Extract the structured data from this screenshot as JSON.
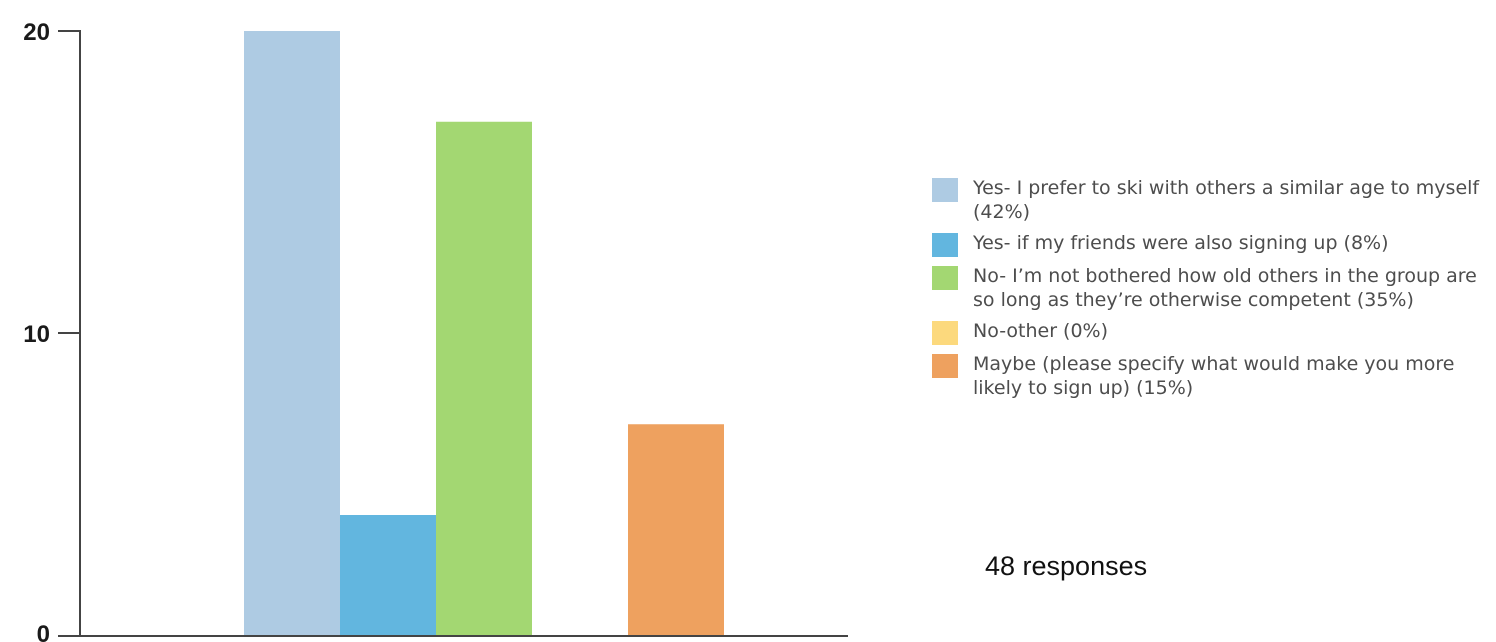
{
  "chart_data": {
    "type": "bar",
    "categories": [
      "Yes- I prefer to ski with others a similar age to myself",
      "Yes- if my friends were also signing up",
      "No- I’m not bothered how old others in the group are so long as they’re otherwise competent",
      "No-other",
      "Maybe (please specify what would make you more likely to sign up)"
    ],
    "values": [
      20,
      4,
      17,
      0,
      7
    ],
    "colors": [
      "#aecbe3",
      "#62b6df",
      "#a3d772",
      "#fcd97d",
      "#eea15f"
    ],
    "ylim": [
      0,
      20
    ],
    "yticks": [
      "0",
      "10",
      "20"
    ],
    "grid": false,
    "legend_position": "right",
    "legend": [
      {
        "label": "Yes- I prefer to ski with others a similar age to myself (42%)",
        "color": "#aecbe3"
      },
      {
        "label": "Yes- if my friends were also signing up (8%)",
        "color": "#62b6df"
      },
      {
        "label": "No- I’m not bothered how old others in the group are so long as they’re otherwise competent (35%)",
        "color": "#a3d772"
      },
      {
        "label": "No-other (0%)",
        "color": "#fcd97d"
      },
      {
        "label": "Maybe (please specify what would make you more likely to sign up) (15%)",
        "color": "#eea15f"
      }
    ],
    "note": "48 responses"
  }
}
